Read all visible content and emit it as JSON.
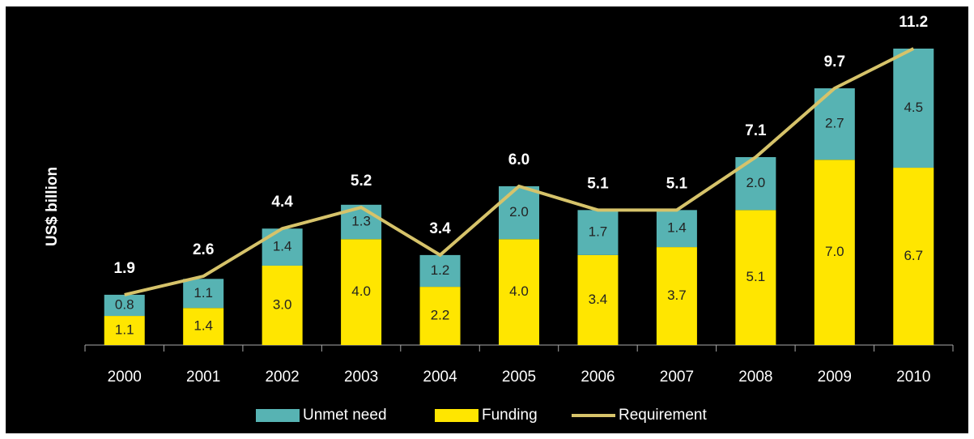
{
  "chart_data": {
    "type": "bar",
    "stacked": true,
    "ylabel": "US$ billion",
    "categories": [
      "2000",
      "2001",
      "2002",
      "2003",
      "2004",
      "2005",
      "2006",
      "2007",
      "2008",
      "2009",
      "2010"
    ],
    "series": [
      {
        "name": "Funding",
        "color": "#ffe600",
        "values": [
          1.1,
          1.4,
          3.0,
          4.0,
          2.2,
          4.0,
          3.4,
          3.7,
          5.1,
          7.0,
          6.7
        ],
        "value_labels": [
          "1.1",
          "1.4",
          "3.0",
          "4.0",
          "2.2",
          "4.0",
          "3.4",
          "3.7",
          "5.1",
          "7.0",
          "6.7"
        ]
      },
      {
        "name": "Unmet need",
        "color": "#57b3b3",
        "values": [
          0.8,
          1.1,
          1.4,
          1.3,
          1.2,
          2.0,
          1.7,
          1.4,
          2.0,
          2.7,
          4.5
        ],
        "value_labels": [
          "0.8",
          "1.1",
          "1.4",
          "1.3",
          "1.2",
          "2.0",
          "1.7",
          "1.4",
          "2.0",
          "2.7",
          "4.5"
        ]
      },
      {
        "name": "Requirement",
        "type": "line",
        "color": "#d6c36a",
        "values": [
          1.9,
          2.6,
          4.4,
          5.2,
          3.4,
          6.0,
          5.1,
          5.1,
          7.1,
          9.7,
          11.2
        ],
        "value_labels": [
          "1.9",
          "2.6",
          "4.4",
          "5.2",
          "3.4",
          "6.0",
          "5.1",
          "5.1",
          "7.1",
          "9.7",
          "11.2"
        ]
      }
    ],
    "legend_order": [
      1,
      0,
      2
    ]
  }
}
